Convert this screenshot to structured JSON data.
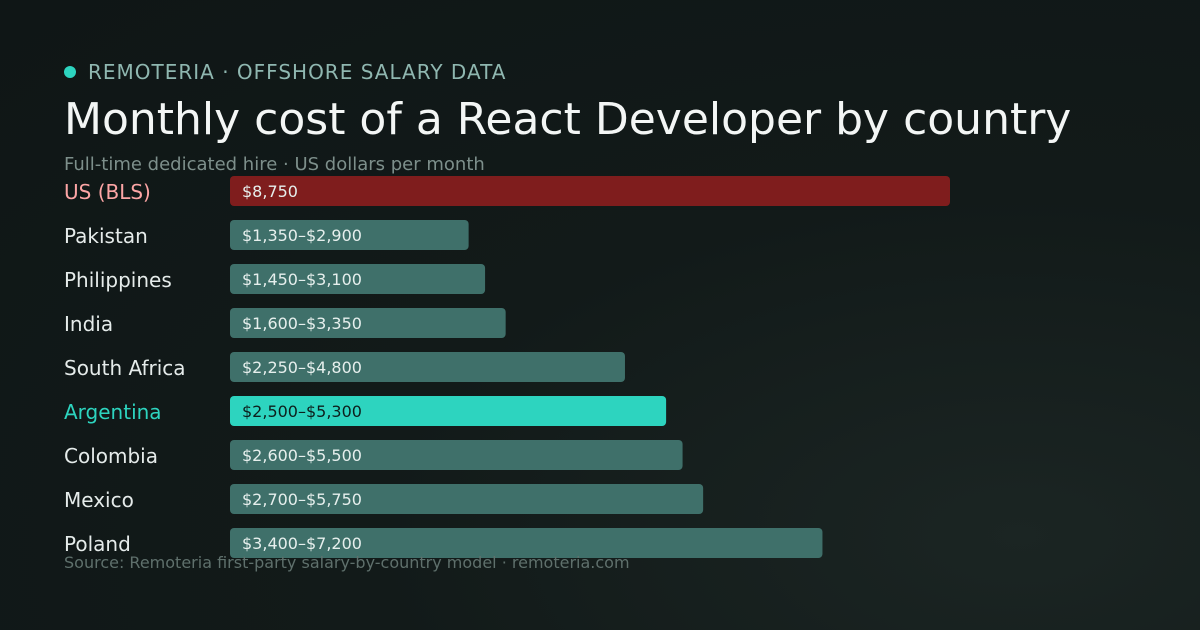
{
  "header": {
    "brand": "REMOTERIA · OFFSHORE SALARY DATA",
    "title": "Monthly cost of a React Developer by country",
    "subtitle": "Full-time dedicated hire · US dollars per month"
  },
  "footer": {
    "source": "Source: Remoteria first-party salary-by-country model · remoteria.com"
  },
  "colors": {
    "us_bar": "#7f1d1d",
    "us_label": "#fca5a5",
    "highlight_bar": "#2dd4bf",
    "highlight_label": "#2dd4bf",
    "default_bar": "#3f706a",
    "default_label": "#e5ebea",
    "bar_text_light": "#e6efed",
    "bar_text_dark": "#0d1f1c"
  },
  "chart_data": {
    "type": "bar",
    "orientation": "horizontal",
    "title": "Monthly cost of a React Developer by country",
    "subtitle": "Full-time dedicated hire · US dollars per month",
    "xlim": [
      0,
      10500
    ],
    "grid": false,
    "categories": [
      "US (BLS)",
      "Pakistan",
      "Philippines",
      "India",
      "South Africa",
      "Argentina",
      "Colombia",
      "Mexico",
      "Poland"
    ],
    "values": [
      8750,
      2900,
      3100,
      3350,
      4800,
      5300,
      5500,
      5750,
      7200
    ],
    "ranges": [
      [
        8750,
        8750
      ],
      [
        1350,
        2900
      ],
      [
        1450,
        3100
      ],
      [
        1600,
        3350
      ],
      [
        2250,
        4800
      ],
      [
        2500,
        5300
      ],
      [
        2600,
        5500
      ],
      [
        2700,
        5750
      ],
      [
        3400,
        7200
      ]
    ],
    "labels": [
      "$8,750",
      "$1,350–$2,900",
      "$1,450–$3,100",
      "$1,600–$3,350",
      "$2,250–$4,800",
      "$2,500–$5,300",
      "$2,600–$5,500",
      "$2,700–$5,750",
      "$3,400–$7,200"
    ],
    "styles": [
      "us",
      "default",
      "default",
      "default",
      "default",
      "highlight",
      "default",
      "default",
      "default"
    ]
  }
}
